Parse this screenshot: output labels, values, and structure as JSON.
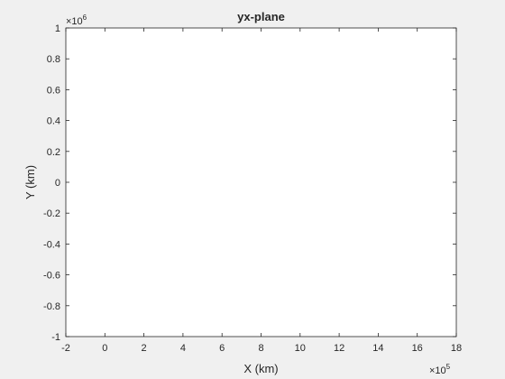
{
  "chart_data": {
    "type": "line",
    "title": "yx-plane",
    "xlabel": "X (km)",
    "ylabel": "Y (km)",
    "xlim": [
      -200000,
      1800000
    ],
    "ylim": [
      -1000000,
      1000000
    ],
    "x_ticks": [
      -2,
      0,
      2,
      4,
      6,
      8,
      10,
      12,
      14,
      16,
      18
    ],
    "y_ticks": [
      -1,
      -0.8,
      -0.6,
      -0.4,
      -0.2,
      0,
      0.2,
      0.4,
      0.6,
      0.8,
      1
    ],
    "x_multiplier": {
      "base": "×10",
      "power": "5"
    },
    "y_multiplier": {
      "base": "×10",
      "power": "6"
    },
    "grid": false,
    "series": []
  }
}
